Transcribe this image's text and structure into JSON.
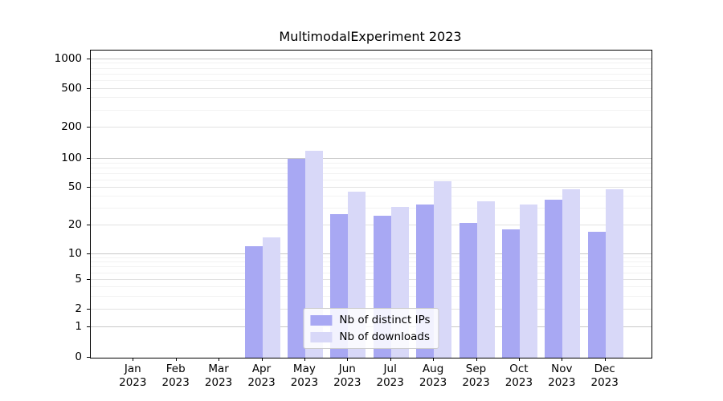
{
  "chart_data": {
    "type": "bar",
    "title": "MultimodalExperiment 2023",
    "categories": [
      "Jan",
      "Feb",
      "Mar",
      "Apr",
      "May",
      "Jun",
      "Jul",
      "Aug",
      "Sep",
      "Oct",
      "Nov",
      "Dec"
    ],
    "x_sublabel": "2023",
    "series": [
      {
        "name": "Nb of distinct IPs",
        "color": "#a8a8f3",
        "values": [
          0,
          0,
          0,
          12,
          100,
          26,
          25,
          33,
          21,
          18,
          37,
          17
        ]
      },
      {
        "name": "Nb of downloads",
        "color": "#d8d8f8",
        "values": [
          0,
          0,
          0,
          15,
          120,
          45,
          31,
          58,
          36,
          33,
          48,
          48
        ]
      }
    ],
    "yscale": "symlog",
    "yticks": [
      0,
      1,
      2,
      5,
      10,
      20,
      50,
      100,
      200,
      500,
      1000
    ],
    "yminorticks": [
      3,
      4,
      6,
      7,
      8,
      9,
      30,
      40,
      60,
      70,
      80,
      90,
      300,
      400,
      600,
      700,
      800,
      900
    ],
    "ylim": [
      0,
      1200
    ],
    "grid": true,
    "legend_position": "lower center"
  }
}
